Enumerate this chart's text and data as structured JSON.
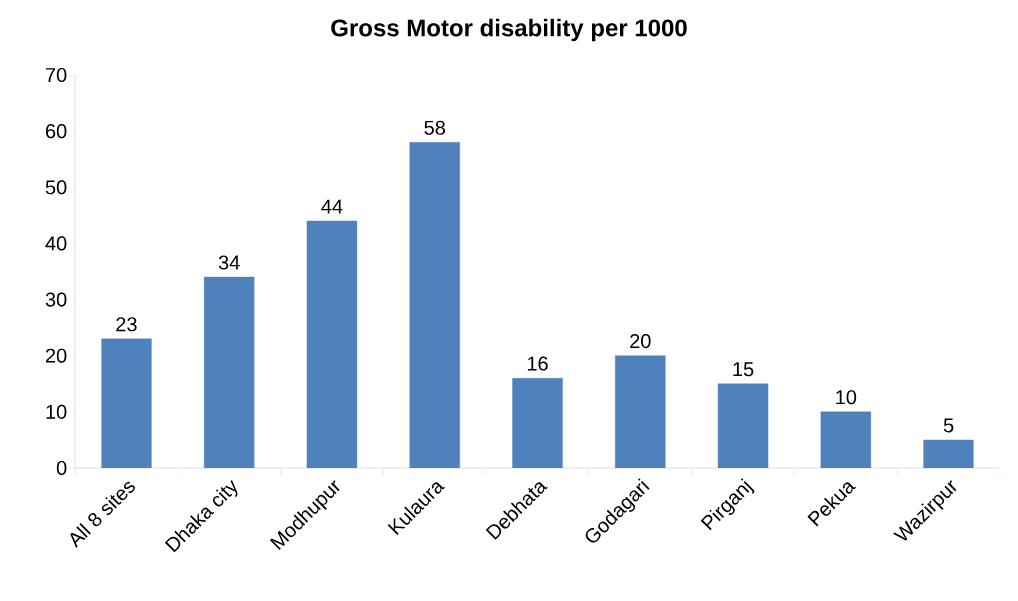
{
  "chart_data": {
    "type": "bar",
    "title": "Gross Motor disability per 1000",
    "categories": [
      "All 8 sites",
      "Dhaka city",
      "Modhupur",
      "Kulaura",
      "Debhata",
      "Godagari",
      "Pirganj",
      "Pekua",
      "Wazirpur"
    ],
    "values": [
      23,
      34,
      44,
      58,
      16,
      20,
      15,
      10,
      5
    ],
    "color": "#4f81bd",
    "ylim": [
      0,
      70
    ],
    "yticks": [
      0,
      10,
      20,
      30,
      40,
      50,
      60,
      70
    ],
    "data_labels": true,
    "grid": false
  }
}
